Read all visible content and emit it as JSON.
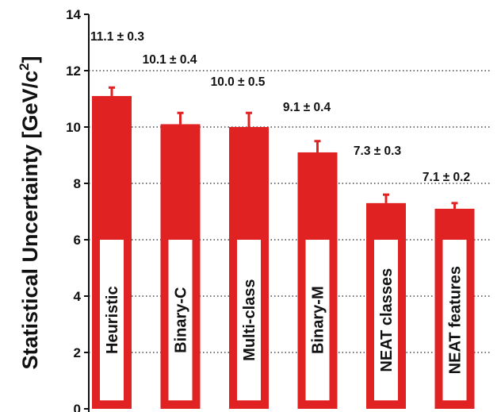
{
  "chart_data": {
    "type": "bar",
    "title": "",
    "xlabel": "",
    "ylabel": "Statistical Uncertainty [GeV/c",
    "ylabel_sup": "2",
    "ylabel_close": "]",
    "ylim": [
      0,
      14
    ],
    "yticks": [
      0,
      2,
      4,
      6,
      8,
      10,
      12,
      14
    ],
    "grid": "horizontal dotted",
    "colors": {
      "bar": "#e02222",
      "label_box": "#ffffff"
    },
    "categories": [
      "Heuristic",
      "Binary-C",
      "Multi-class",
      "Binary-M",
      "NEAT classes",
      "NEAT features"
    ],
    "values": [
      11.1,
      10.1,
      10.0,
      9.1,
      7.3,
      7.1
    ],
    "errors": [
      0.3,
      0.4,
      0.5,
      0.4,
      0.3,
      0.2
    ],
    "value_labels": [
      "11.1 ± 0.3",
      "10.1 ± 0.4",
      "10.0 ± 0.5",
      "9.1 ± 0.4",
      "7.3 ± 0.3",
      "7.1 ± 0.2"
    ]
  }
}
